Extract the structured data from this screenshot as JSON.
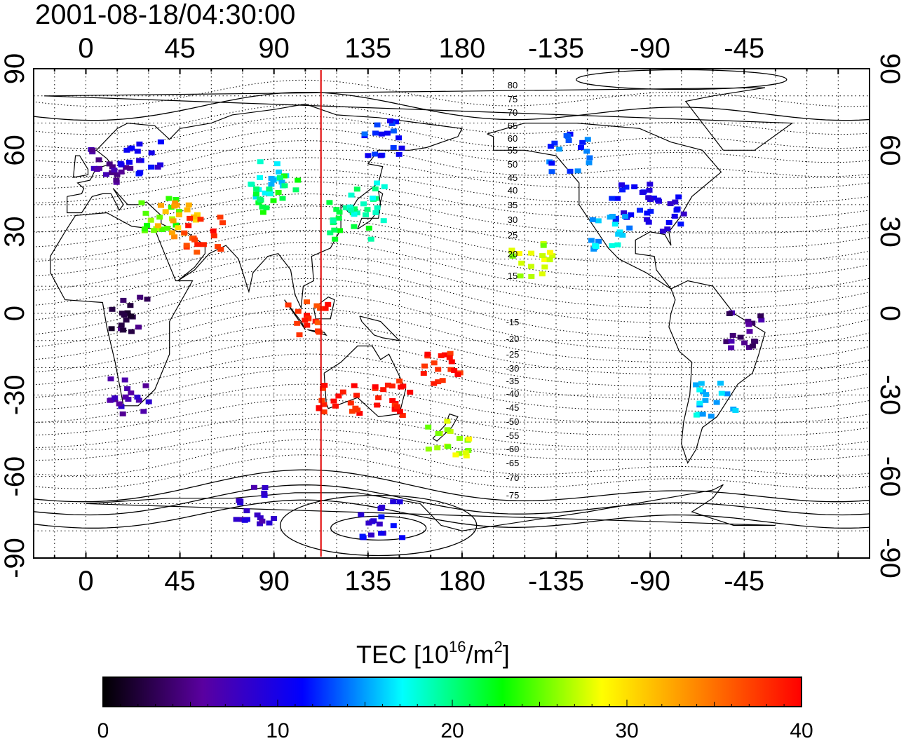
{
  "title": "2001-08-18/04:30:00",
  "axes": {
    "lon_ticks": [
      "0",
      "45",
      "90",
      "135",
      "180",
      "-135",
      "-90",
      "-45"
    ],
    "lat_ticks": [
      "90",
      "60",
      "30",
      "0",
      "-30",
      "-60",
      "-90"
    ]
  },
  "marker": {
    "longitude": 112.5,
    "color": "#e00000"
  },
  "contours": {
    "labels": [
      "80",
      "75",
      "70",
      "65",
      "60",
      "55",
      "50",
      "45",
      "40",
      "35",
      "30",
      "25",
      "20",
      "15",
      "-15",
      "-20",
      "-25",
      "-30",
      "-35",
      "-40",
      "-45",
      "-50",
      "-55",
      "-60",
      "-65",
      "-70",
      "-75"
    ]
  },
  "colorbar": {
    "title_main": "TEC  [10",
    "title_sup1": "16",
    "title_mid": "/m",
    "title_sup2": "2",
    "title_end": "]",
    "ticks": [
      "0",
      "10",
      "20",
      "30",
      "40"
    ],
    "range": [
      0,
      40
    ],
    "colors": [
      "#000000",
      "#5a00a0",
      "#0000ff",
      "#00ffff",
      "#00ff00",
      "#ffff00",
      "#ff8000",
      "#ff0000"
    ]
  },
  "chart_data": {
    "type": "heatmap",
    "title": "2001-08-18/04:30:00",
    "xlabel": "",
    "ylabel": "",
    "xlim": [
      -25,
      375
    ],
    "ylim": [
      -90,
      90
    ],
    "colorbar_label": "TEC [10^16/m^2]",
    "zlim": [
      0,
      40
    ],
    "regions": [
      {
        "lon": 10,
        "lat": 55,
        "tec": 6
      },
      {
        "lon": 25,
        "lat": 58,
        "tec": 10
      },
      {
        "lon": 35,
        "lat": 38,
        "tec": 25
      },
      {
        "lon": 42,
        "lat": 35,
        "tec": 32
      },
      {
        "lon": 55,
        "lat": 30,
        "tec": 38
      },
      {
        "lon": 85,
        "lat": 50,
        "tec": 17
      },
      {
        "lon": 90,
        "lat": 45,
        "tec": 22
      },
      {
        "lon": 105,
        "lat": 0,
        "tec": 38
      },
      {
        "lon": 125,
        "lat": 35,
        "tec": 21
      },
      {
        "lon": 132,
        "lat": 42,
        "tec": 19
      },
      {
        "lon": 140,
        "lat": 65,
        "tec": 12
      },
      {
        "lon": 120,
        "lat": -30,
        "tec": 39
      },
      {
        "lon": 145,
        "lat": -30,
        "tec": 39
      },
      {
        "lon": 172,
        "lat": -45,
        "tec": 27
      },
      {
        "lon": 170,
        "lat": -20,
        "tec": 39
      },
      {
        "lon": 230,
        "lat": 60,
        "tec": 13
      },
      {
        "lon": 260,
        "lat": 42,
        "tec": 11
      },
      {
        "lon": 275,
        "lat": 38,
        "tec": 10
      },
      {
        "lon": 250,
        "lat": 30,
        "tec": 16
      },
      {
        "lon": 212,
        "lat": 20,
        "tec": 27
      },
      {
        "lon": 300,
        "lat": -30,
        "tec": 16
      },
      {
        "lon": 312,
        "lat": -5,
        "tec": 5
      },
      {
        "lon": 20,
        "lat": -30,
        "tec": 7
      },
      {
        "lon": 18,
        "lat": 0,
        "tec": 3
      },
      {
        "lon": 80,
        "lat": -70,
        "tec": 8
      },
      {
        "lon": 140,
        "lat": -75,
        "tec": 10
      }
    ]
  }
}
